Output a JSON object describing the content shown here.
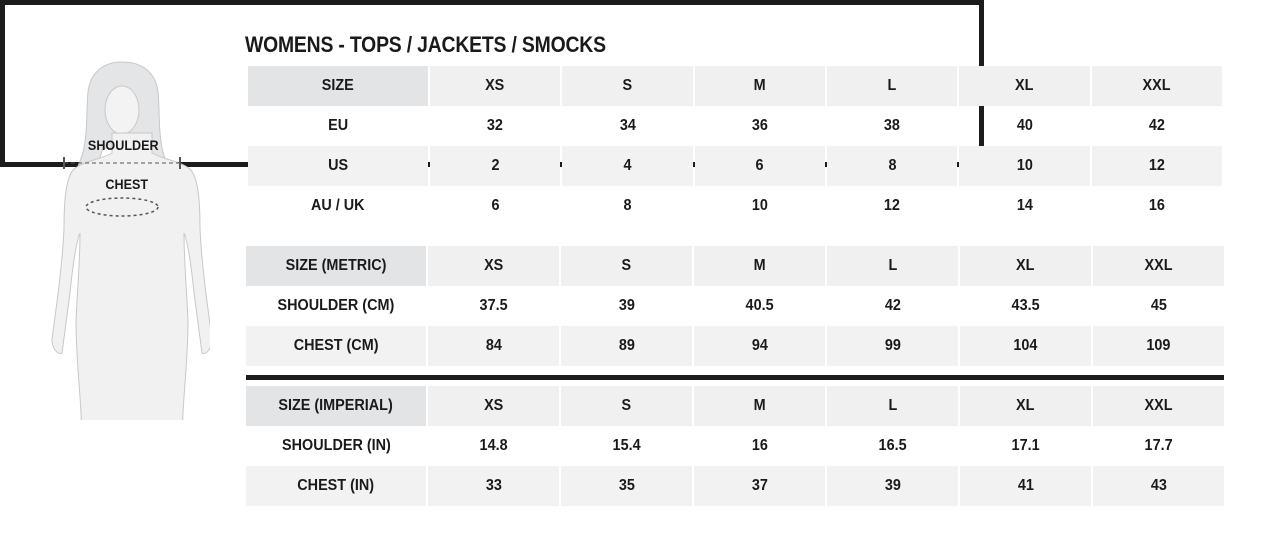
{
  "title": "WOMENS - TOPS / JACKETS / SMOCKS",
  "figure": {
    "shoulder_label": "SHOULDER",
    "chest_label": "CHEST"
  },
  "sizes": [
    "XS",
    "S",
    "M",
    "L",
    "XL",
    "XXL"
  ],
  "conversion": {
    "header": "SIZE",
    "rows": [
      {
        "label": "EU",
        "values": [
          "32",
          "34",
          "36",
          "38",
          "40",
          "42"
        ]
      },
      {
        "label": "US",
        "values": [
          "2",
          "4",
          "6",
          "8",
          "10",
          "12"
        ]
      },
      {
        "label": "AU / UK",
        "values": [
          "6",
          "8",
          "10",
          "12",
          "14",
          "16"
        ]
      }
    ]
  },
  "metric": {
    "header": "SIZE (METRIC)",
    "rows": [
      {
        "label": "SHOULDER (CM)",
        "values": [
          "37.5",
          "39",
          "40.5",
          "42",
          "43.5",
          "45"
        ]
      },
      {
        "label": "CHEST (CM)",
        "values": [
          "84",
          "89",
          "94",
          "99",
          "104",
          "109"
        ]
      }
    ]
  },
  "imperial": {
    "header": "SIZE (IMPERIAL)",
    "rows": [
      {
        "label": "SHOULDER (IN)",
        "values": [
          "14.8",
          "15.4",
          "16",
          "16.5",
          "17.1",
          "17.7"
        ]
      },
      {
        "label": "CHEST (IN)",
        "values": [
          "33",
          "35",
          "37",
          "39",
          "41",
          "43"
        ]
      }
    ]
  }
}
